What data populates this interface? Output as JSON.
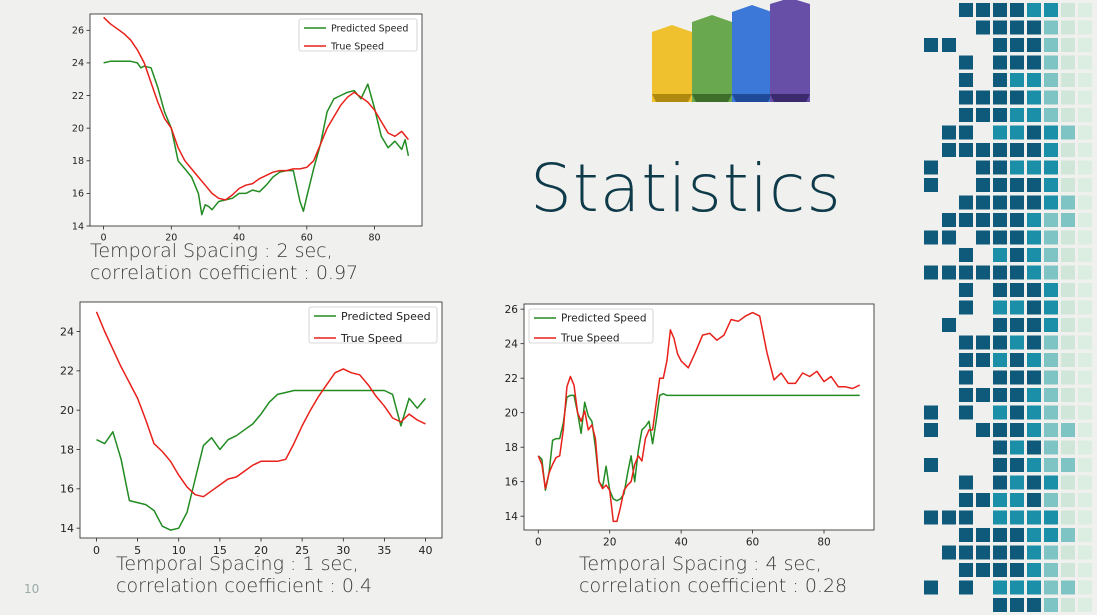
{
  "slide": {
    "title": "Statistics",
    "page_number": "10"
  },
  "captions": [
    "Temporal Spacing : 2 sec, correlation coefficient : 0.97",
    "Temporal Spacing : 1 sec, correlation coefficient : 0.4",
    "Temporal Spacing : 4 sec, correlation coefficient : 0.28"
  ],
  "colors": {
    "predicted": "#228b22",
    "true": "#e8201a",
    "title": "#0f3a4a"
  },
  "chart_data": [
    {
      "type": "line",
      "xlim": [
        -4,
        94
      ],
      "ylim": [
        14,
        27
      ],
      "xticks": [
        0,
        20,
        40,
        60,
        80
      ],
      "yticks": [
        14,
        16,
        18,
        20,
        22,
        24,
        26
      ],
      "legend": "top-right",
      "series": [
        {
          "name": "Predicted Speed",
          "color": "#228b22",
          "x": [
            0,
            2,
            4,
            6,
            8,
            10,
            11,
            12,
            14,
            16,
            18,
            20,
            22,
            24,
            26,
            28,
            29,
            30,
            31,
            32,
            34,
            36,
            38,
            40,
            42,
            44,
            46,
            48,
            50,
            52,
            54,
            56,
            58,
            59,
            60,
            62,
            64,
            66,
            68,
            70,
            72,
            74,
            76,
            78,
            80,
            82,
            84,
            86,
            88,
            89,
            90
          ],
          "y": [
            24,
            24.1,
            24.1,
            24.1,
            24.1,
            24,
            23.7,
            23.8,
            23.7,
            22.5,
            21,
            20,
            18,
            17.5,
            17,
            16,
            14.7,
            15.3,
            15.2,
            15,
            15.5,
            15.6,
            15.7,
            16,
            16,
            16.2,
            16.1,
            16.5,
            17,
            17.3,
            17.4,
            17.4,
            15.5,
            14.9,
            15.8,
            17.5,
            19,
            21,
            21.8,
            22,
            22.2,
            22.3,
            21.8,
            22.7,
            21.2,
            19.5,
            18.8,
            19.2,
            18.7,
            19.3,
            18.3
          ]
        },
        {
          "name": "True Speed",
          "color": "#e8201a",
          "x": [
            0,
            2,
            4,
            6,
            8,
            10,
            12,
            14,
            16,
            18,
            20,
            22,
            24,
            26,
            28,
            30,
            32,
            34,
            36,
            38,
            40,
            42,
            44,
            46,
            48,
            50,
            52,
            54,
            56,
            58,
            60,
            62,
            64,
            66,
            68,
            70,
            72,
            74,
            76,
            78,
            80,
            82,
            84,
            86,
            88,
            90
          ],
          "y": [
            26.8,
            26.4,
            26.1,
            25.8,
            25.4,
            24.8,
            24,
            22.8,
            21.6,
            20.6,
            20,
            18.8,
            18,
            17.5,
            17,
            16.5,
            16,
            15.7,
            15.6,
            15.9,
            16.3,
            16.5,
            16.6,
            16.9,
            17.1,
            17.3,
            17.4,
            17.4,
            17.5,
            17.5,
            17.6,
            18,
            19,
            20,
            20.7,
            21.4,
            21.9,
            22.2,
            21.9,
            21.6,
            21.1,
            20.4,
            19.7,
            19.5,
            19.8,
            19.3
          ]
        }
      ]
    },
    {
      "type": "line",
      "xlim": [
        -2,
        42
      ],
      "ylim": [
        13.5,
        25.5
      ],
      "xticks": [
        0,
        5,
        10,
        15,
        20,
        25,
        30,
        35,
        40
      ],
      "yticks": [
        14,
        16,
        18,
        20,
        22,
        24
      ],
      "legend": "top-right",
      "series": [
        {
          "name": "Predicted Speed",
          "color": "#228b22",
          "x": [
            0,
            1,
            2,
            3,
            4,
            5,
            6,
            7,
            8,
            9,
            10,
            11,
            12,
            13,
            14,
            15,
            16,
            17,
            18,
            19,
            20,
            21,
            22,
            23,
            24,
            25,
            26,
            27,
            28,
            29,
            30,
            31,
            32,
            33,
            34,
            35,
            36,
            37,
            38,
            39,
            40
          ],
          "y": [
            18.5,
            18.3,
            18.9,
            17.5,
            15.4,
            15.3,
            15.2,
            14.9,
            14.1,
            13.9,
            14,
            14.8,
            16.5,
            18.2,
            18.6,
            18,
            18.5,
            18.7,
            19,
            19.3,
            19.8,
            20.4,
            20.8,
            20.9,
            21,
            21,
            21,
            21,
            21,
            21,
            21,
            21,
            21,
            21,
            21,
            21,
            20.8,
            19.2,
            20.6,
            20.1,
            20.6
          ]
        },
        {
          "name": "True Speed",
          "color": "#e8201a",
          "x": [
            0,
            1,
            2,
            3,
            4,
            5,
            6,
            7,
            8,
            9,
            10,
            11,
            12,
            13,
            14,
            15,
            16,
            17,
            18,
            19,
            20,
            21,
            22,
            23,
            24,
            25,
            26,
            27,
            28,
            29,
            30,
            31,
            32,
            33,
            34,
            35,
            36,
            37,
            38,
            39,
            40
          ],
          "y": [
            25,
            24,
            23.1,
            22.2,
            21.4,
            20.6,
            19.5,
            18.3,
            17.9,
            17.4,
            16.7,
            16.1,
            15.7,
            15.6,
            15.9,
            16.2,
            16.5,
            16.6,
            16.9,
            17.2,
            17.4,
            17.4,
            17.4,
            17.5,
            18.3,
            19.2,
            20,
            20.7,
            21.3,
            21.9,
            22.1,
            21.9,
            21.8,
            21.3,
            20.7,
            20.2,
            19.6,
            19.4,
            19.8,
            19.5,
            19.3
          ]
        }
      ]
    },
    {
      "type": "line",
      "xlim": [
        -4,
        94
      ],
      "ylim": [
        13.2,
        26.3
      ],
      "xticks": [
        0,
        20,
        40,
        60,
        80
      ],
      "yticks": [
        14,
        16,
        18,
        20,
        22,
        24,
        26
      ],
      "legend": "top-left",
      "series": [
        {
          "name": "Predicted Speed",
          "color": "#228b22",
          "x": [
            0,
            1,
            2,
            3,
            4,
            5,
            6,
            7,
            8,
            9,
            10,
            11,
            12,
            13,
            14,
            15,
            16,
            17,
            18,
            19,
            20,
            21,
            22,
            23,
            24,
            25,
            26,
            27,
            28,
            29,
            30,
            31,
            32,
            33,
            34,
            35,
            36,
            37,
            38,
            39,
            40,
            42,
            46,
            50,
            60,
            70,
            80,
            90
          ],
          "y": [
            17.5,
            17.3,
            15.5,
            16.5,
            18.4,
            18.5,
            18.5,
            19.4,
            20.9,
            21,
            21,
            20,
            18.8,
            20.6,
            19.8,
            19.5,
            18,
            16,
            15.7,
            16.9,
            15.5,
            15,
            14.9,
            15,
            15.3,
            16.5,
            17.5,
            16,
            17.8,
            19,
            19.2,
            19.5,
            18.2,
            19.5,
            21,
            21.1,
            21,
            21,
            21,
            21,
            21,
            21,
            21,
            21,
            21,
            21,
            21,
            21
          ]
        },
        {
          "name": "True Speed",
          "color": "#e8201a",
          "x": [
            0,
            1,
            2,
            3,
            4,
            5,
            6,
            7,
            8,
            9,
            10,
            11,
            12,
            13,
            14,
            15,
            16,
            17,
            18,
            19,
            20,
            21,
            22,
            23,
            24,
            25,
            26,
            27,
            28,
            29,
            30,
            31,
            32,
            33,
            34,
            35,
            36,
            37,
            38,
            39,
            40,
            42,
            44,
            46,
            48,
            50,
            52,
            54,
            56,
            58,
            60,
            62,
            64,
            66,
            68,
            70,
            72,
            74,
            76,
            78,
            80,
            82,
            84,
            86,
            88,
            90
          ],
          "y": [
            17.5,
            17,
            15.6,
            16.5,
            17,
            17.4,
            17.5,
            19,
            21.5,
            22.1,
            21.6,
            20,
            19.5,
            20.1,
            19,
            19.3,
            18.5,
            16,
            15.6,
            15.8,
            15.5,
            13.7,
            13.7,
            14.5,
            15.5,
            15.8,
            16,
            17,
            17.5,
            17.2,
            18.5,
            19,
            19,
            20.5,
            22,
            22,
            23,
            24.8,
            24.3,
            23.4,
            23,
            22.6,
            23.5,
            24.5,
            24.6,
            24.2,
            24.5,
            25.4,
            25.3,
            25.6,
            25.8,
            25.6,
            23.5,
            21.9,
            22.3,
            21.7,
            21.7,
            22.3,
            22.1,
            22.4,
            21.8,
            22.1,
            21.5,
            21.5,
            21.4,
            21.6
          ]
        }
      ]
    }
  ]
}
